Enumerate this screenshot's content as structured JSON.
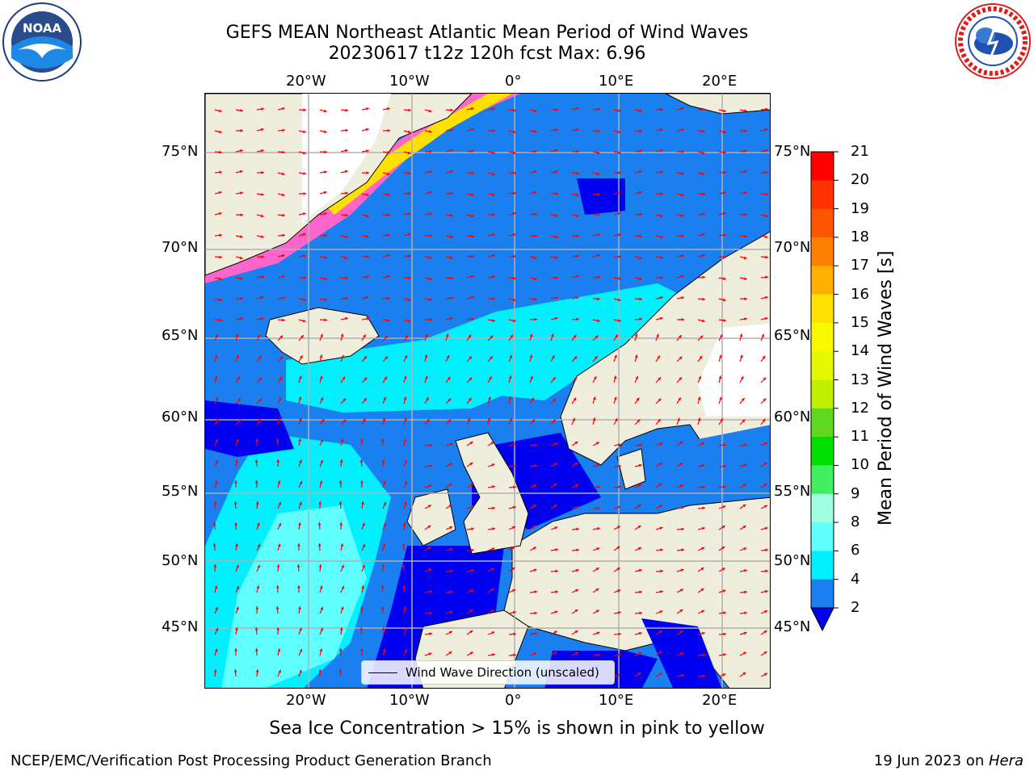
{
  "title": {
    "line1": "GEFS MEAN Northeast Atlantic Mean Period of Wind Waves",
    "line2": "20230617 t12z 120h fcst   Max: 6.96"
  },
  "logos": {
    "left": {
      "name": "noaa-logo",
      "text": "NOAA"
    },
    "right": {
      "name": "nws-logo",
      "text": "NATIONAL WEATHER SERVICE"
    }
  },
  "axes": {
    "lon_labels": [
      "20°W",
      "10°W",
      "0°",
      "10°E",
      "20°E"
    ],
    "lat_labels": [
      "75°N",
      "70°N",
      "65°N",
      "60°N",
      "55°N",
      "50°N",
      "45°N"
    ]
  },
  "colorbar": {
    "title": "Mean Period of Wind Waves [s]",
    "ticks": [
      "21",
      "20",
      "19",
      "18",
      "17",
      "16",
      "15",
      "14",
      "13",
      "12",
      "11",
      "10",
      "9",
      "8",
      "6",
      "4",
      "2"
    ],
    "colors": [
      "#ff0000",
      "#ff3300",
      "#ff5500",
      "#ff8000",
      "#ffb000",
      "#ffe000",
      "#f8f800",
      "#e6f800",
      "#c0f000",
      "#60d820",
      "#00e000",
      "#40f060",
      "#a0ffe0",
      "#60ffff",
      "#00f0ff",
      "#1a80f0"
    ],
    "extend_color": "#0000f0"
  },
  "legend": {
    "label": "Wind Wave Direction (unscaled)"
  },
  "caption": "Sea Ice Concentration > 15% is shown in pink to yellow",
  "footer": {
    "left": "NCEP/EMC/Verification Post Processing Product Generation Branch",
    "right_prefix": "19 Jun 2023 on ",
    "right_host": "Hera"
  },
  "colors": {
    "land": "#efeddc",
    "ocean_low": "#0000f0",
    "ocean_mid": "#1a80f0",
    "ocean_cyan": "#00f0ff",
    "ocean_light": "#60ffff",
    "ice_pink": "#ff66cc",
    "ice_yellow": "#ffe000",
    "arrow": "#ff0000",
    "grid": "#b0b0b0"
  }
}
